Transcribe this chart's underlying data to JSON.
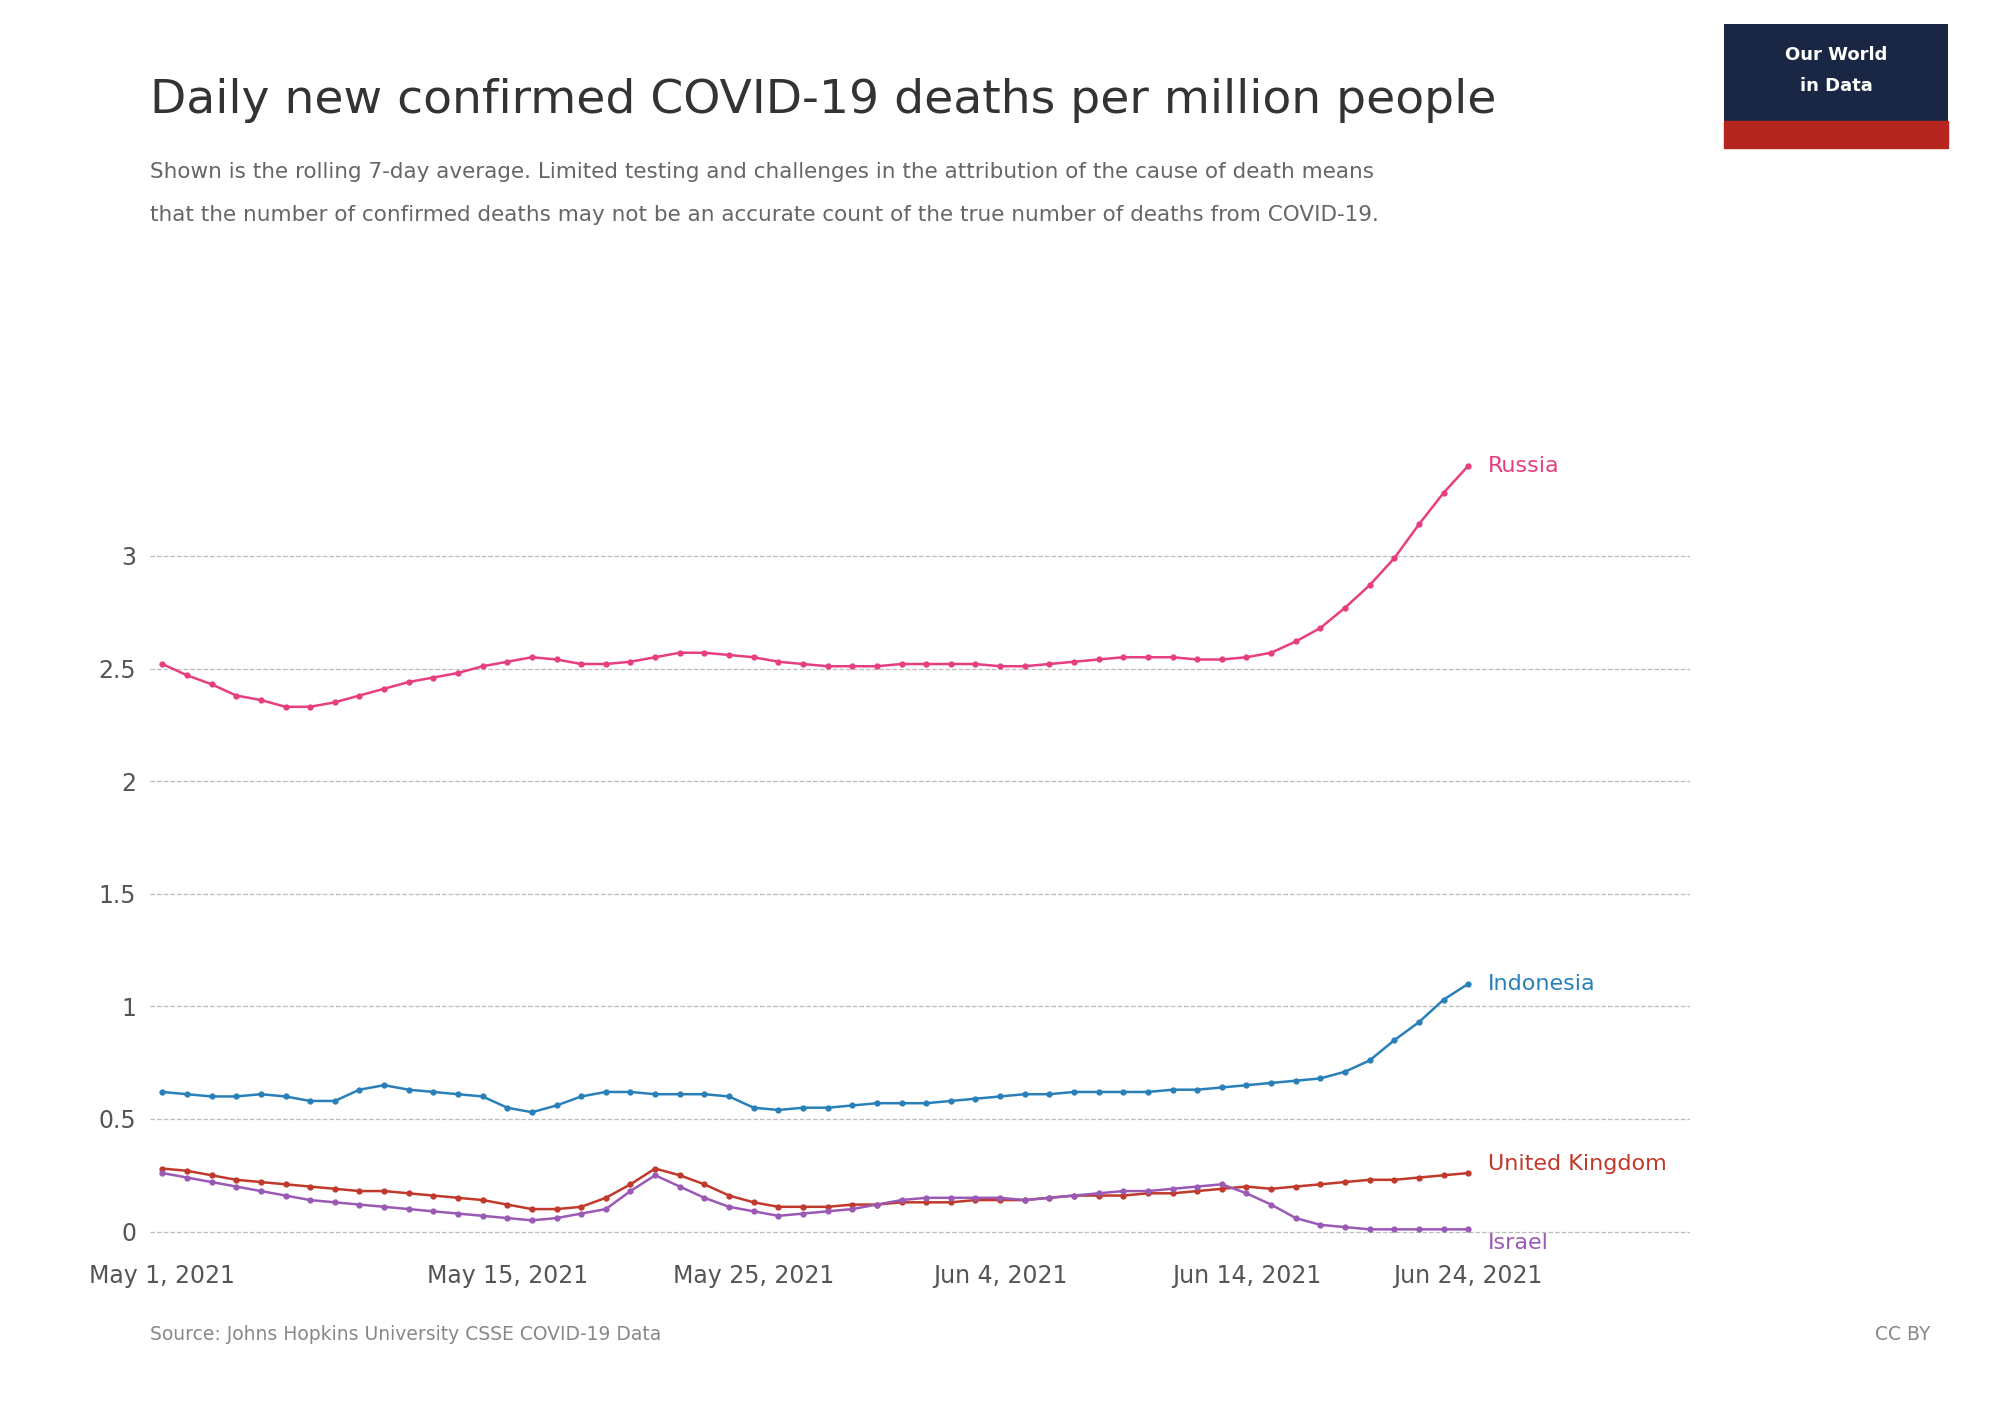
{
  "title": "Daily new confirmed COVID-19 deaths per million people",
  "subtitle1": "Shown is the rolling 7-day average. Limited testing and challenges in the attribution of the cause of death means",
  "subtitle2": "that the number of confirmed deaths may not be an accurate count of the true number of deaths from COVID-19.",
  "source": "Source: Johns Hopkins University CSSE COVID-19 Data",
  "license": "CC BY",
  "background_color": "#ffffff",
  "grid_color": "#bbbbbb",
  "title_color": "#333333",
  "subtitle_color": "#666666",
  "logo_bg": "#1a2744",
  "logo_accent": "#b5261e",
  "countries": {
    "Russia": {
      "color": "#e63e7e",
      "data": [
        2.52,
        2.47,
        2.43,
        2.38,
        2.36,
        2.33,
        2.33,
        2.35,
        2.38,
        2.41,
        2.44,
        2.46,
        2.48,
        2.51,
        2.53,
        2.55,
        2.54,
        2.52,
        2.52,
        2.53,
        2.55,
        2.57,
        2.57,
        2.56,
        2.55,
        2.53,
        2.52,
        2.51,
        2.51,
        2.51,
        2.52,
        2.52,
        2.52,
        2.52,
        2.51,
        2.51,
        2.52,
        2.53,
        2.54,
        2.55,
        2.55,
        2.55,
        2.54,
        2.54,
        2.55,
        2.57,
        2.62,
        2.68,
        2.77,
        2.87,
        2.99,
        3.14,
        3.28,
        3.4
      ]
    },
    "Indonesia": {
      "color": "#2980b9",
      "data": [
        0.62,
        0.61,
        0.6,
        0.6,
        0.61,
        0.6,
        0.58,
        0.58,
        0.63,
        0.65,
        0.63,
        0.62,
        0.61,
        0.6,
        0.55,
        0.53,
        0.56,
        0.6,
        0.62,
        0.62,
        0.61,
        0.61,
        0.61,
        0.6,
        0.55,
        0.54,
        0.55,
        0.55,
        0.56,
        0.57,
        0.57,
        0.57,
        0.58,
        0.59,
        0.6,
        0.61,
        0.61,
        0.62,
        0.62,
        0.62,
        0.62,
        0.63,
        0.63,
        0.64,
        0.65,
        0.66,
        0.67,
        0.68,
        0.71,
        0.76,
        0.85,
        0.93,
        1.03,
        1.1
      ]
    },
    "United Kingdom": {
      "color": "#c0392b",
      "data": [
        0.28,
        0.27,
        0.25,
        0.23,
        0.22,
        0.21,
        0.2,
        0.19,
        0.18,
        0.18,
        0.17,
        0.16,
        0.15,
        0.14,
        0.12,
        0.1,
        0.1,
        0.11,
        0.15,
        0.21,
        0.28,
        0.25,
        0.21,
        0.16,
        0.13,
        0.11,
        0.11,
        0.11,
        0.12,
        0.12,
        0.13,
        0.13,
        0.13,
        0.14,
        0.14,
        0.14,
        0.15,
        0.16,
        0.16,
        0.16,
        0.17,
        0.17,
        0.18,
        0.19,
        0.2,
        0.19,
        0.2,
        0.21,
        0.22,
        0.23,
        0.23,
        0.24,
        0.25,
        0.26
      ]
    },
    "Israel": {
      "color": "#9b59b6",
      "data": [
        0.26,
        0.24,
        0.22,
        0.2,
        0.18,
        0.16,
        0.14,
        0.13,
        0.12,
        0.11,
        0.1,
        0.09,
        0.08,
        0.07,
        0.06,
        0.05,
        0.06,
        0.08,
        0.1,
        0.18,
        0.25,
        0.2,
        0.15,
        0.11,
        0.09,
        0.07,
        0.08,
        0.09,
        0.1,
        0.12,
        0.14,
        0.15,
        0.15,
        0.15,
        0.15,
        0.14,
        0.15,
        0.16,
        0.17,
        0.18,
        0.18,
        0.19,
        0.2,
        0.21,
        0.17,
        0.12,
        0.06,
        0.03,
        0.02,
        0.01,
        0.01,
        0.01,
        0.01,
        0.01
      ]
    }
  },
  "x_tick_labels": [
    "May 1, 2021",
    "May 15, 2021",
    "May 25, 2021",
    "Jun 4, 2021",
    "Jun 14, 2021",
    "Jun 24, 2021"
  ],
  "x_tick_positions": [
    0,
    14,
    24,
    34,
    44,
    53
  ],
  "y_ticks": [
    0,
    0.5,
    1.0,
    1.5,
    2.0,
    2.5,
    3.0
  ],
  "ylim": [
    -0.08,
    3.65
  ],
  "xlim": [
    -0.5,
    62
  ]
}
